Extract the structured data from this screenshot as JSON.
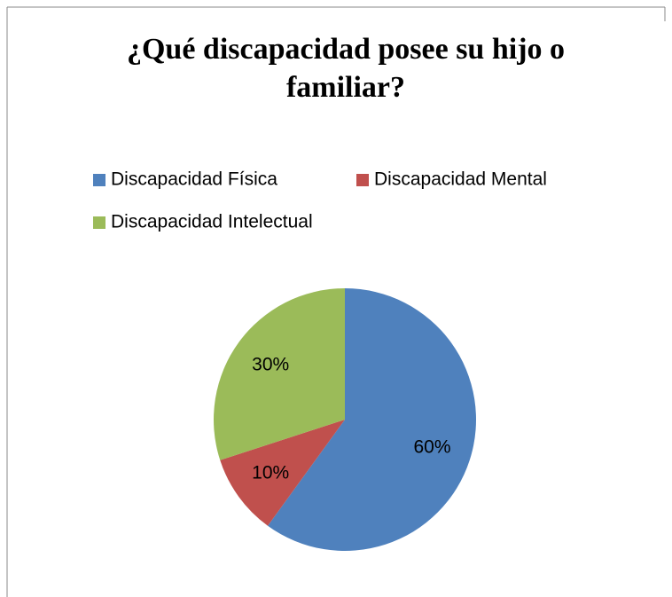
{
  "chart_data": {
    "type": "pie",
    "title": "¿Qué discapacidad posee su hijo o familiar?",
    "categories": [
      "Discapacidad Física",
      "Discapacidad Mental",
      "Discapacidad Intelectual"
    ],
    "values": [
      60,
      10,
      30
    ],
    "value_labels": [
      "60%",
      "10%",
      "30%"
    ],
    "colors": [
      "#4f81bd",
      "#c0504d",
      "#9bbb59"
    ],
    "legend": "top"
  }
}
